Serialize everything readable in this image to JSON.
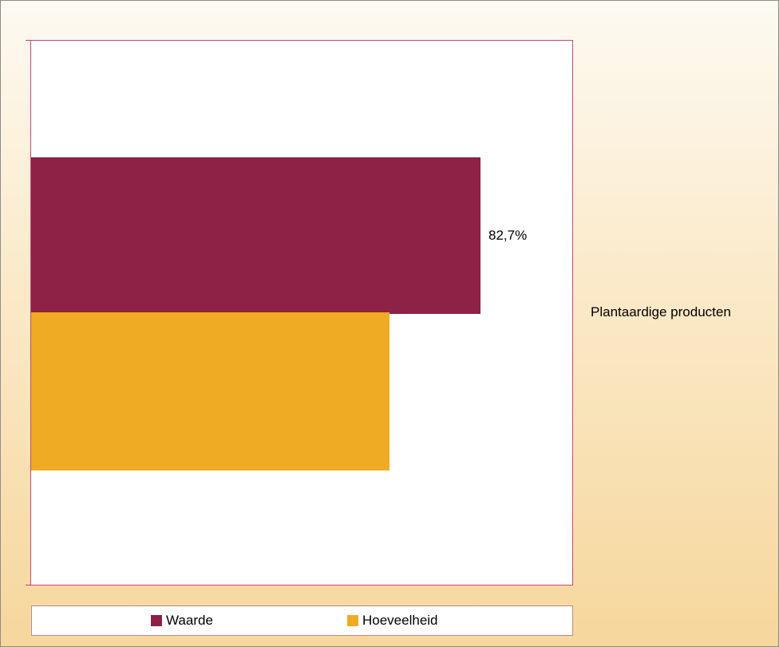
{
  "chart_data": {
    "type": "bar",
    "orientation": "horizontal",
    "categories": [
      "Plantaardige producten"
    ],
    "series": [
      {
        "name": "Waarde",
        "values": [
          82.7
        ],
        "label": "82,7%",
        "color": "#8e2146"
      },
      {
        "name": "Hoeveelheid",
        "values": [
          66.0
        ],
        "label": "",
        "color": "#efab24"
      }
    ],
    "value_unit": "%",
    "xlim": [
      0,
      100
    ],
    "title": "",
    "xlabel": "",
    "ylabel": "",
    "grid": false,
    "legend_position": "bottom"
  }
}
